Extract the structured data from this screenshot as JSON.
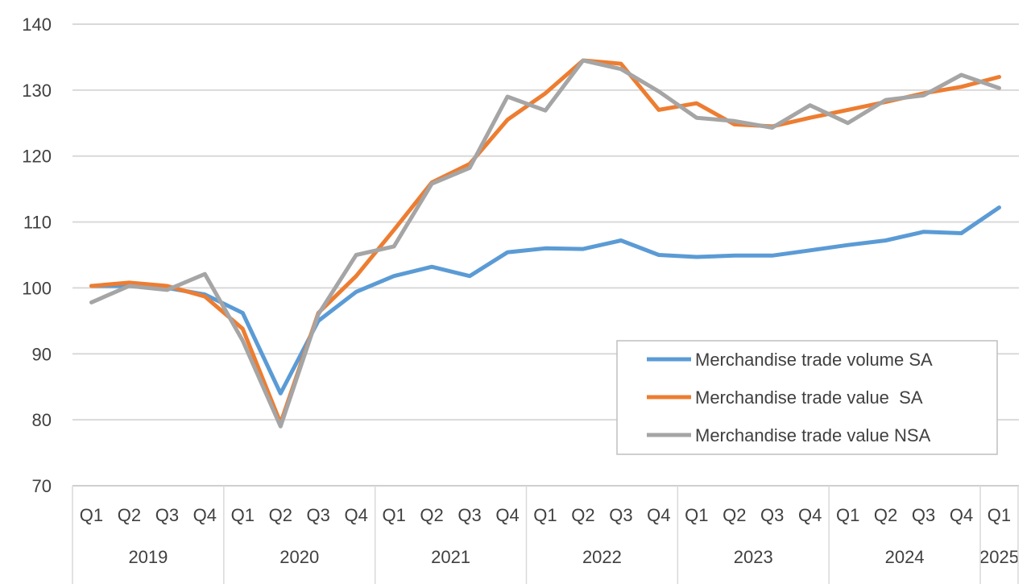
{
  "chart_data": {
    "type": "line",
    "title": "",
    "xlabel": "",
    "ylabel": "",
    "ylim": [
      70,
      140
    ],
    "yticks": [
      70,
      80,
      90,
      100,
      110,
      120,
      130,
      140
    ],
    "grid": true,
    "legend_position": "bottom-right",
    "categories": [
      "2019 Q1",
      "2019 Q2",
      "2019 Q3",
      "2019 Q4",
      "2020 Q1",
      "2020 Q2",
      "2020 Q3",
      "2020 Q4",
      "2021 Q1",
      "2021 Q2",
      "2021 Q3",
      "2021 Q4",
      "2022 Q1",
      "2022 Q2",
      "2022 Q3",
      "2022 Q4",
      "2023 Q1",
      "2023 Q2",
      "2023 Q3",
      "2023 Q4",
      "2024 Q1",
      "2024 Q2",
      "2024 Q3",
      "2024 Q4",
      "2025 Q1"
    ],
    "quarter_labels": [
      "Q1",
      "Q2",
      "Q3",
      "Q4",
      "Q1",
      "Q2",
      "Q3",
      "Q4",
      "Q1",
      "Q2",
      "Q3",
      "Q4",
      "Q1",
      "Q2",
      "Q3",
      "Q4",
      "Q1",
      "Q2",
      "Q3",
      "Q4",
      "Q1",
      "Q2",
      "Q3",
      "Q4",
      "Q1"
    ],
    "year_groups": [
      {
        "label": "2019",
        "count": 4
      },
      {
        "label": "2020",
        "count": 4
      },
      {
        "label": "2021",
        "count": 4
      },
      {
        "label": "2022",
        "count": 4
      },
      {
        "label": "2023",
        "count": 4
      },
      {
        "label": "2024",
        "count": 4
      },
      {
        "label": "2025",
        "count": 1
      }
    ],
    "series": [
      {
        "name": "Merchandise trade volume SA",
        "color": "#5B9BD5",
        "values": [
          100.3,
          100.3,
          100.0,
          99.0,
          96.2,
          84.0,
          95.0,
          99.4,
          101.8,
          103.2,
          101.8,
          105.4,
          106.0,
          105.9,
          107.2,
          105.0,
          104.7,
          104.9,
          104.9,
          105.7,
          106.5,
          107.2,
          108.5,
          108.3,
          112.2
        ]
      },
      {
        "name": "Merchandise trade value  SA",
        "color": "#ED7D31",
        "values": [
          100.3,
          100.8,
          100.3,
          98.7,
          93.8,
          79.5,
          96.2,
          101.8,
          108.8,
          116.0,
          118.8,
          125.5,
          129.5,
          134.5,
          134.0,
          127.0,
          128.0,
          124.8,
          124.5,
          125.8,
          127.0,
          128.2,
          129.5,
          130.5,
          132.0
        ]
      },
      {
        "name": "Merchandise trade value NSA",
        "color": "#A5A5A5",
        "values": [
          97.8,
          100.3,
          99.7,
          102.1,
          92.0,
          79.0,
          96.0,
          105.0,
          106.3,
          115.8,
          118.2,
          129.0,
          126.9,
          134.5,
          133.2,
          129.8,
          125.8,
          125.3,
          124.3,
          127.7,
          125.0,
          128.5,
          129.2,
          132.3,
          130.3
        ]
      }
    ]
  }
}
